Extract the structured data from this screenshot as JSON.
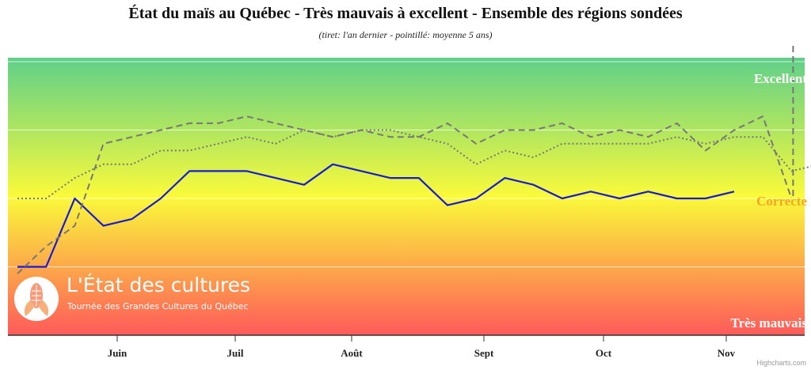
{
  "title": "État du maïs au Québec - Très mauvais à excellent - Ensemble des régions sondées",
  "subtitle": "(tiret: l'an dernier - pointillé: moyenne 5 ans)",
  "credits": "Highcharts.com",
  "logo": {
    "icon": "corn-icon",
    "title": "L'État des cultures",
    "subtitle": "Tournée des Grandes Cultures du Québec"
  },
  "colors": {
    "current": "#1a1ad6",
    "last_year": "#777777",
    "average": "#777777",
    "band_top": "#5fd08a",
    "band_mid": "#fafa3a",
    "band_bottom": "#ff5a5a",
    "label_excellent": "#ffffff",
    "label_correcte": "#f5a623",
    "label_tres_mauvais": "#ffffff"
  },
  "chart_data": {
    "type": "line",
    "title": "État du maïs au Québec - Très mauvais à excellent - Ensemble des régions sondées",
    "subtitle": "(tiret: l'an dernier - pointillé: moyenne 5 ans)",
    "x_unit": "week",
    "x_start_label": "late May",
    "x_tick_labels": [
      "Juin",
      "Juil",
      "Août",
      "Sept",
      "Oct",
      "Nov"
    ],
    "y_band_labels": [
      "Excellent",
      "Correcte",
      "Très mauvais"
    ],
    "ylim": [
      1,
      5
    ],
    "grid": true,
    "series": [
      {
        "style": "solid",
        "values": [
          2.0,
          2.0,
          3.0,
          2.6,
          2.7,
          3.0,
          3.4,
          3.4,
          3.4,
          3.3,
          3.2,
          3.5,
          3.4,
          3.3,
          3.3,
          2.9,
          3.0,
          3.3,
          3.2,
          3.0,
          3.1,
          3.0,
          3.1,
          3.0,
          3.0,
          3.1
        ]
      },
      {
        "style": "dashed",
        "values": [
          1.9,
          2.3,
          2.6,
          3.8,
          3.9,
          4.0,
          4.1,
          4.1,
          4.2,
          4.1,
          4.0,
          3.9,
          4.0,
          3.9,
          3.9,
          4.1,
          3.8,
          4.0,
          4.0,
          4.1,
          3.9,
          4.0,
          3.9,
          4.1,
          3.7,
          4.0,
          4.2,
          3.0
        ]
      },
      {
        "style": "dotted",
        "values": [
          3.0,
          3.0,
          3.3,
          3.5,
          3.5,
          3.7,
          3.7,
          3.8,
          3.9,
          3.8,
          4.0,
          3.9,
          4.0,
          4.0,
          3.9,
          3.8,
          3.5,
          3.7,
          3.6,
          3.8,
          3.8,
          3.8,
          3.8,
          3.9,
          3.8,
          3.9,
          3.9,
          3.4,
          3.5
        ]
      }
    ]
  }
}
